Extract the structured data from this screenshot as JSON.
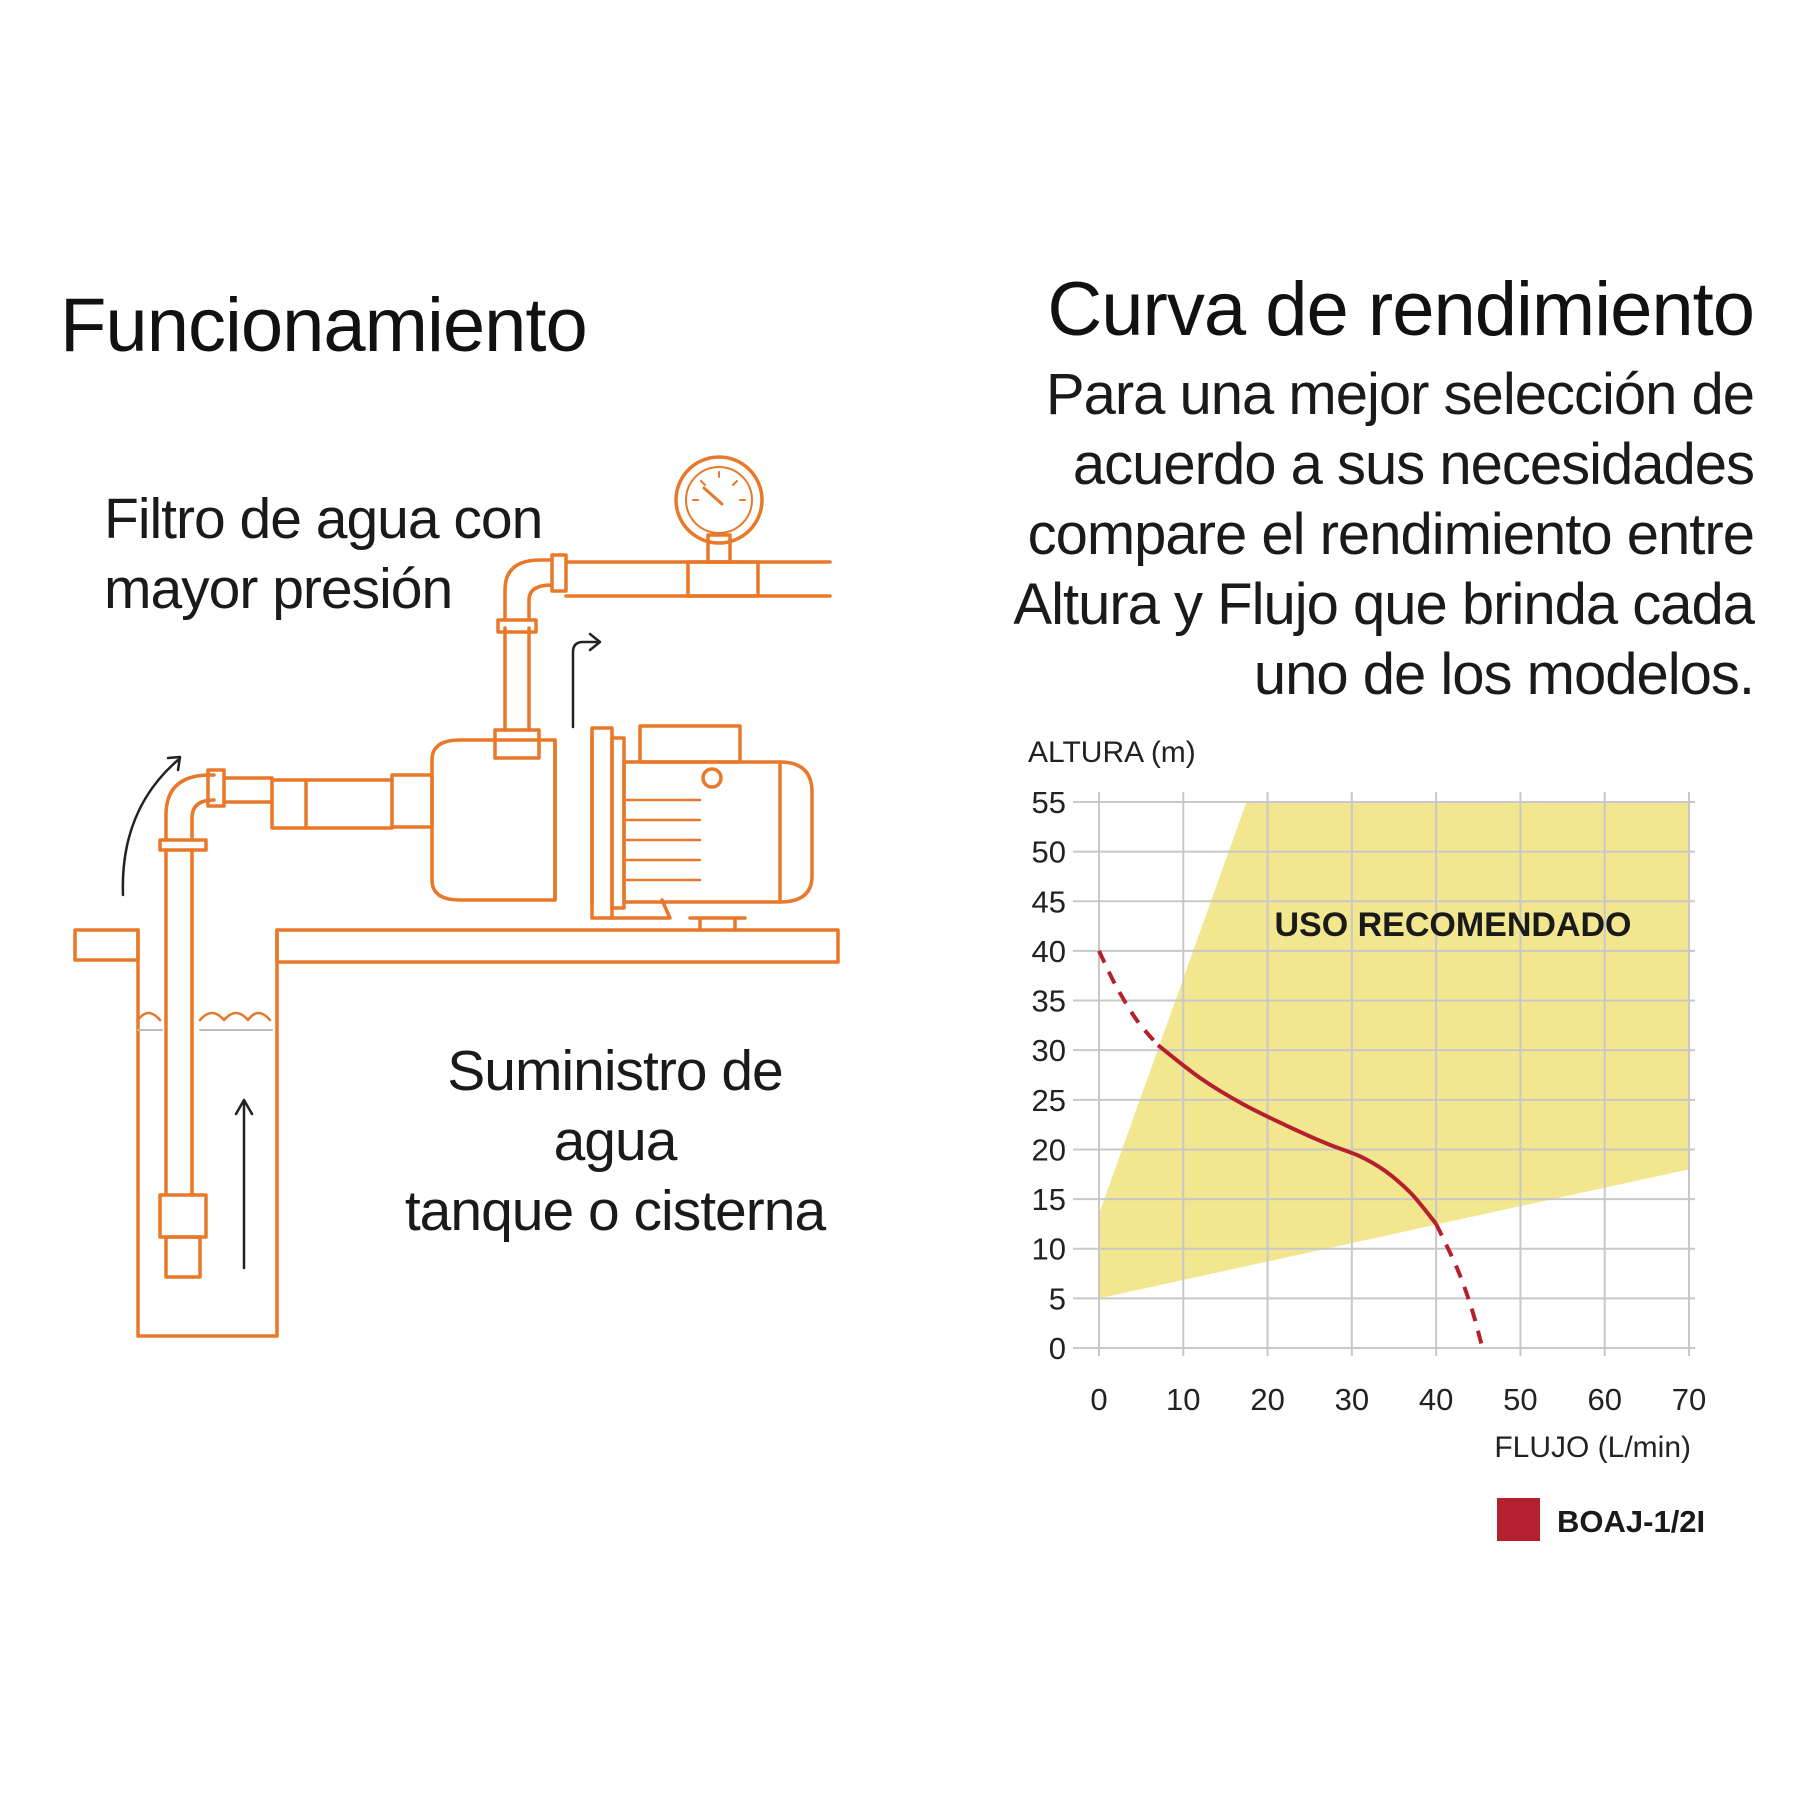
{
  "left": {
    "title": "Funcionamiento",
    "filter_caption": [
      "Filtro de agua con",
      "mayor presión"
    ],
    "supply_caption": [
      "Suministro de agua",
      "tanque o cisterna"
    ]
  },
  "right": {
    "title": "Curva de rendimiento",
    "description": [
      "Para una mejor selección de",
      "acuerdo a sus necesidades",
      "compare el rendimiento entre",
      "Altura y Flujo que brinda cada",
      "uno de los modelos."
    ]
  },
  "colors": {
    "illustration_orange": "#e8782a",
    "recommended_zone": "#f2e68e",
    "curve_red": "#b5202e",
    "grid": "#c8c8c8"
  },
  "illustration": {
    "icons": [
      "pressure-gauge-icon",
      "water-pump-icon",
      "suction-pipe-icon",
      "water-tank-icon",
      "flow-arrow-icon"
    ]
  },
  "chart_data": {
    "type": "line",
    "ylabel": "ALTURA (m)",
    "xlabel": "FLUJO (L/min)",
    "x_ticks": [
      0,
      10,
      20,
      30,
      40,
      50,
      60,
      70
    ],
    "y_ticks": [
      0,
      5,
      10,
      15,
      20,
      25,
      30,
      35,
      40,
      45,
      50,
      55
    ],
    "xlim": [
      0,
      70
    ],
    "ylim": [
      0,
      55
    ],
    "grid": true,
    "legend_position": "bottom-right",
    "recommended_zone": {
      "label": "USO RECOMENDADO",
      "polygon": [
        [
          0,
          5
        ],
        [
          0,
          13.5
        ],
        [
          17.5,
          55
        ],
        [
          70,
          55
        ],
        [
          70,
          18
        ],
        [
          0,
          5
        ]
      ]
    },
    "series": [
      {
        "name": "BOAJ-1/2I",
        "color": "#b5202e",
        "dashed_start": [
          [
            0,
            40
          ],
          [
            2,
            36.5
          ],
          [
            4.5,
            33
          ],
          [
            7,
            30.5
          ]
        ],
        "points": [
          [
            7,
            30.5
          ],
          [
            12,
            27.2
          ],
          [
            17,
            24.6
          ],
          [
            22,
            22.5
          ],
          [
            27,
            20.6
          ],
          [
            31,
            19.3
          ],
          [
            34,
            17.8
          ],
          [
            37,
            15.6
          ],
          [
            40,
            12.5
          ]
        ],
        "dashed_end": [
          [
            40,
            12.5
          ],
          [
            42.5,
            8
          ],
          [
            44.2,
            4
          ],
          [
            45.5,
            0
          ]
        ]
      }
    ]
  }
}
